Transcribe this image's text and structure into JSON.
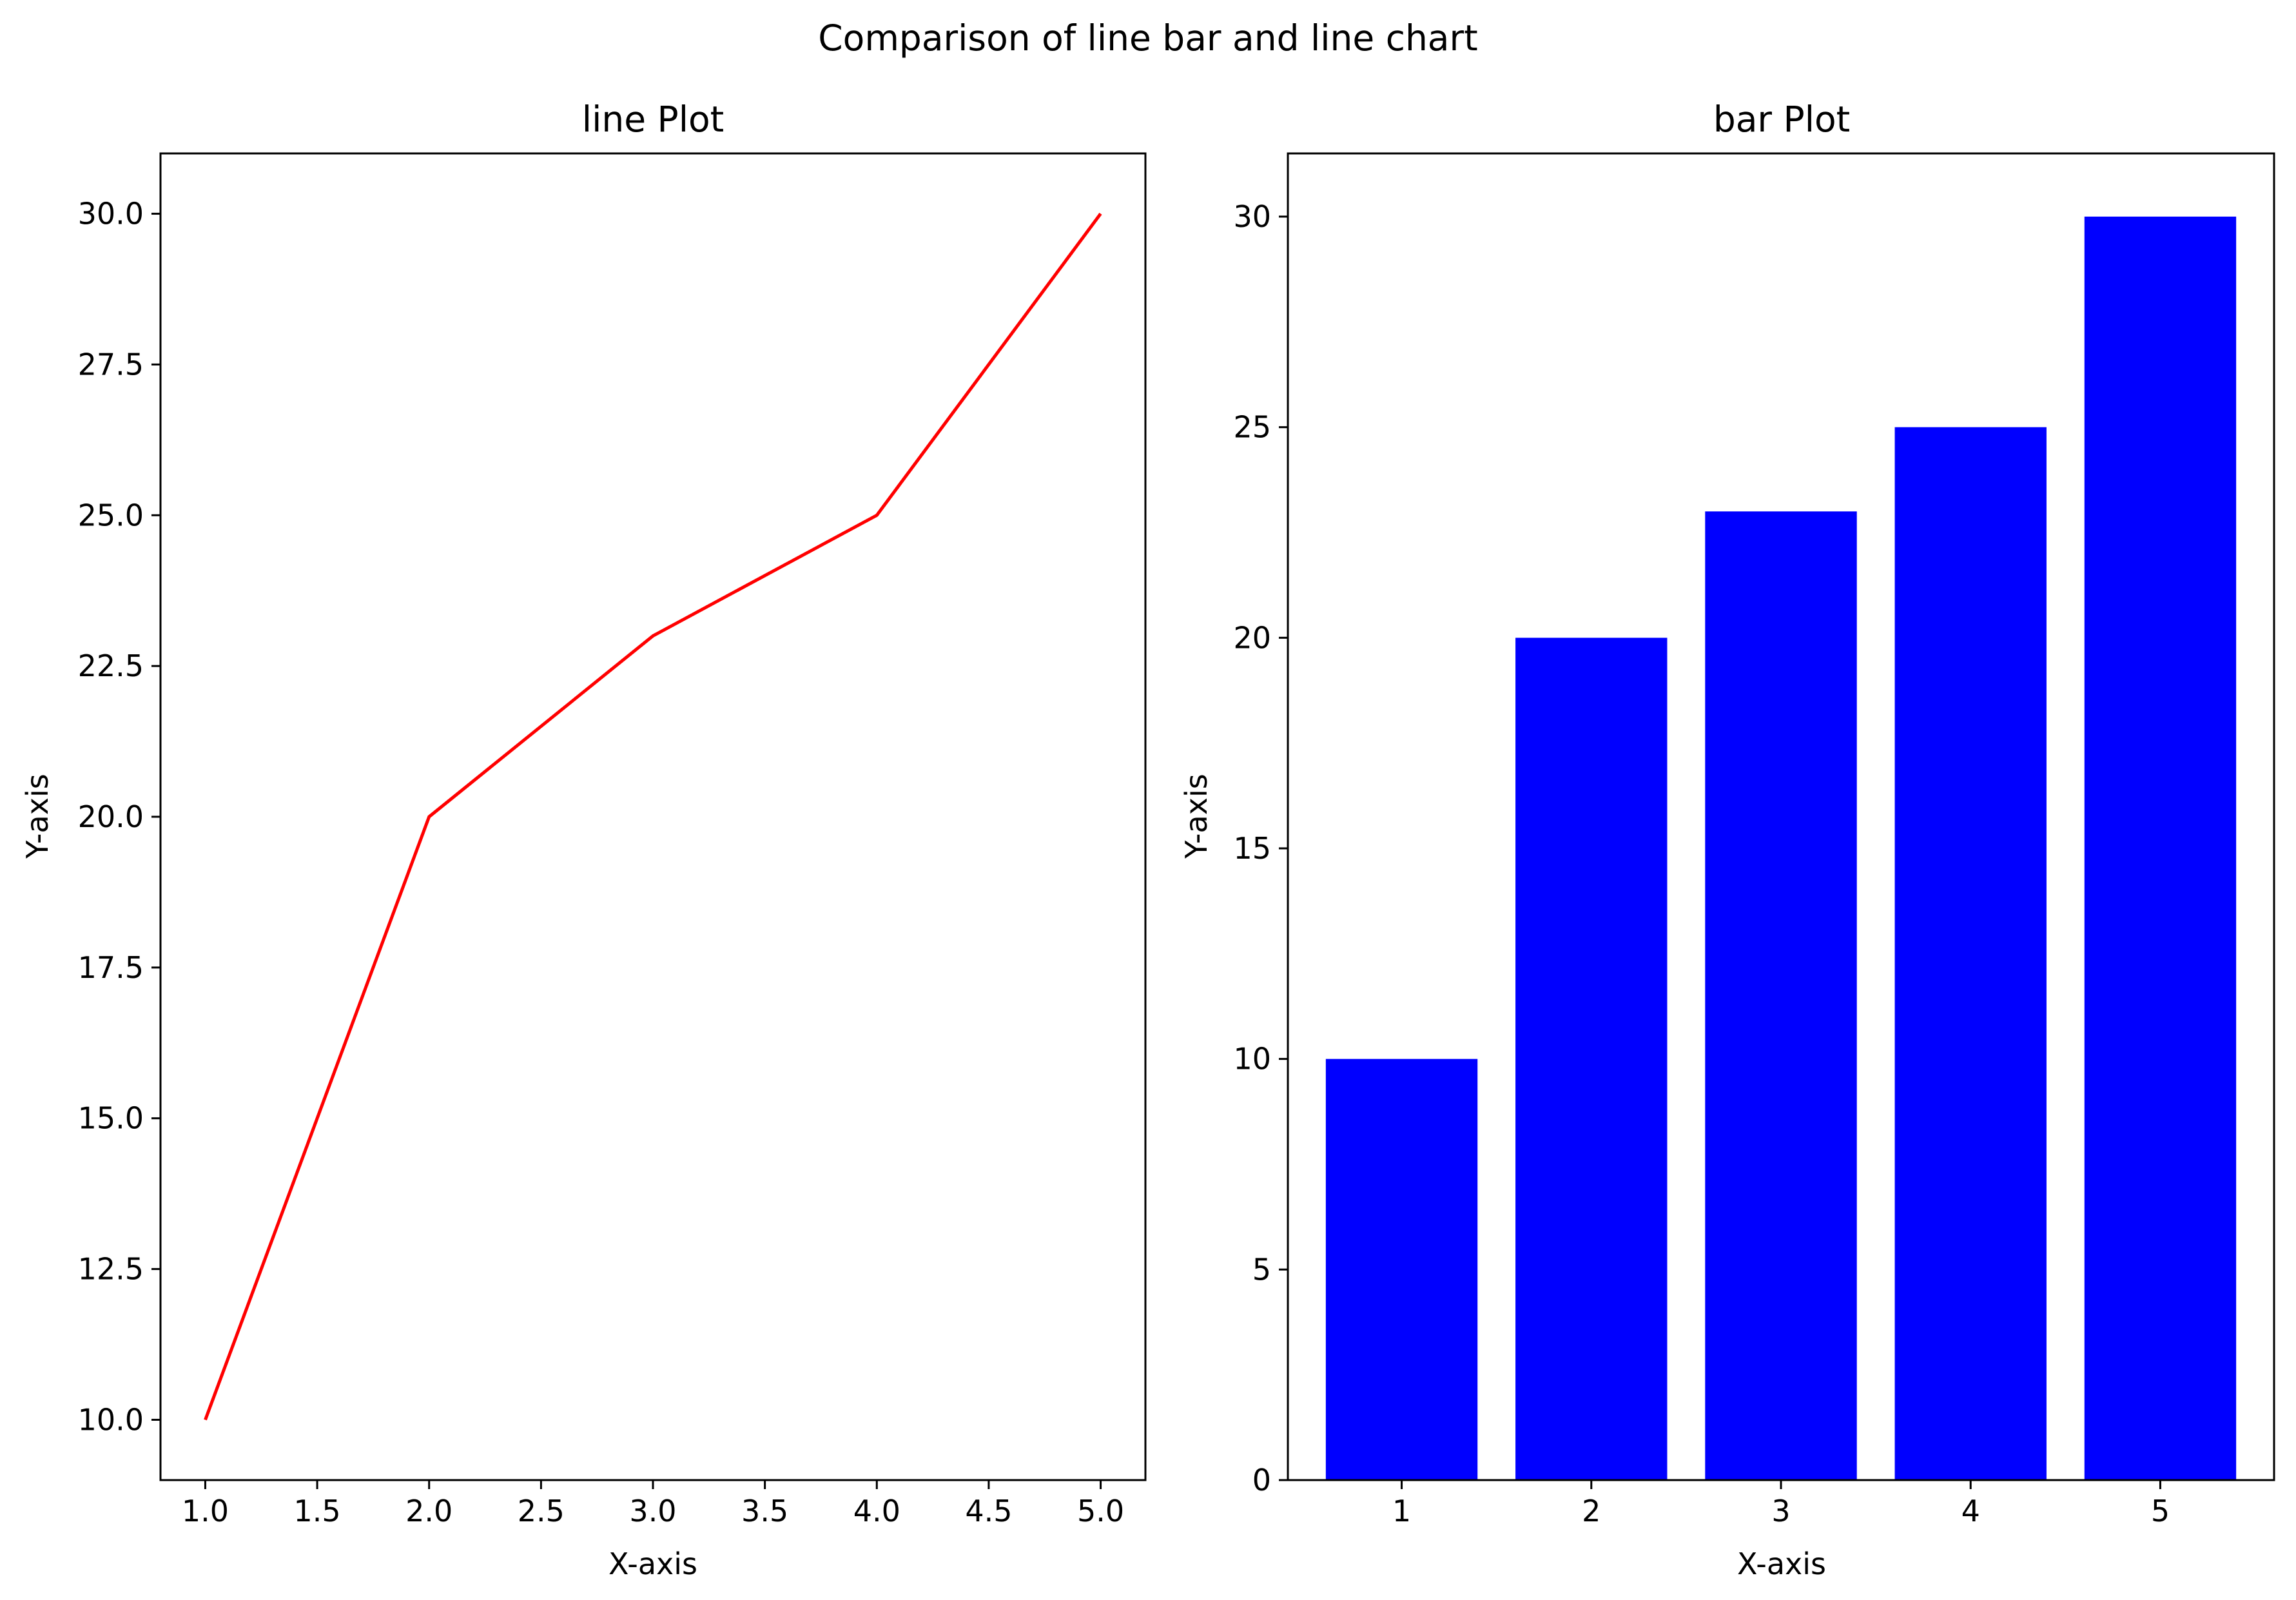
{
  "figure": {
    "suptitle": "Comparison of line bar and line chart"
  },
  "chart_data": [
    {
      "type": "line",
      "title": "line Plot",
      "xlabel": "X-axis",
      "ylabel": "Y-axis",
      "x": [
        1,
        2,
        3,
        4,
        5
      ],
      "series": [
        {
          "values": [
            10,
            20,
            23,
            25,
            30
          ],
          "color": "#ff0000"
        }
      ],
      "xlim": [
        0.8,
        5.2
      ],
      "ylim": [
        9.0,
        31.0
      ],
      "xticks": [
        1.0,
        1.5,
        2.0,
        2.5,
        3.0,
        3.5,
        4.0,
        4.5,
        5.0
      ],
      "xtick_labels": [
        "1.0",
        "1.5",
        "2.0",
        "2.5",
        "3.0",
        "3.5",
        "4.0",
        "4.5",
        "5.0"
      ],
      "yticks": [
        10.0,
        12.5,
        15.0,
        17.5,
        20.0,
        22.5,
        25.0,
        27.5,
        30.0
      ],
      "ytick_labels": [
        "10.0",
        "12.5",
        "15.0",
        "17.5",
        "20.0",
        "22.5",
        "25.0",
        "27.5",
        "30.0"
      ],
      "grid": false
    },
    {
      "type": "bar",
      "title": "bar Plot",
      "xlabel": "X-axis",
      "ylabel": "Y-axis",
      "categories": [
        "1",
        "2",
        "3",
        "4",
        "5"
      ],
      "x": [
        1,
        2,
        3,
        4,
        5
      ],
      "series": [
        {
          "values": [
            10,
            20,
            23,
            25,
            30
          ],
          "color": "#0000ff"
        }
      ],
      "xlim": [
        0.4,
        5.6
      ],
      "ylim": [
        0,
        31.5
      ],
      "xticks": [
        1,
        2,
        3,
        4,
        5
      ],
      "xtick_labels": [
        "1",
        "2",
        "3",
        "4",
        "5"
      ],
      "yticks": [
        0,
        5,
        10,
        15,
        20,
        25,
        30
      ],
      "ytick_labels": [
        "0",
        "5",
        "10",
        "15",
        "20",
        "25",
        "30"
      ],
      "grid": false
    }
  ]
}
